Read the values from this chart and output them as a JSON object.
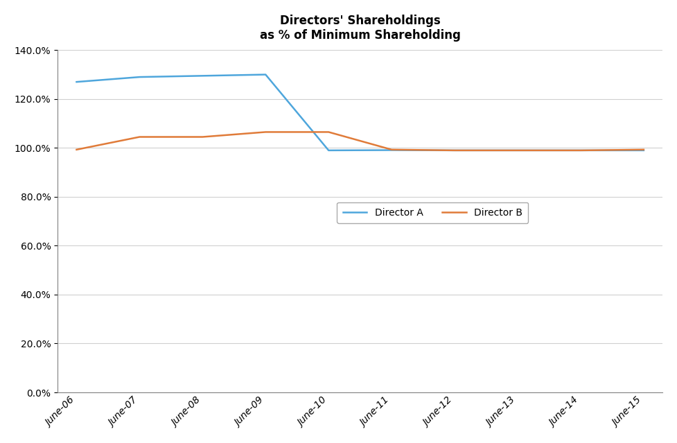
{
  "title_line1": "Directors' Shareholdings",
  "title_line2": "as % of Minimum Shareholding",
  "x_labels": [
    "June-06",
    "June-07",
    "June-08",
    "June-09",
    "June-10",
    "June-11",
    "June-12",
    "June-13",
    "June-14",
    "June-15"
  ],
  "director_a": [
    1.27,
    1.29,
    1.295,
    1.3,
    0.99,
    0.991,
    0.99,
    0.99,
    0.99,
    0.99
  ],
  "director_b": [
    0.993,
    1.045,
    1.045,
    1.065,
    1.065,
    0.993,
    0.99,
    0.99,
    0.99,
    0.993
  ],
  "color_a": "#4EA6DC",
  "color_b": "#E07B39",
  "ylim_min": 0.0,
  "ylim_max": 1.4,
  "yticks": [
    0.0,
    0.2,
    0.4,
    0.6,
    0.8,
    1.0,
    1.2,
    1.4
  ],
  "background_color": "#FFFFFF",
  "grid_color": "#D0D0D0",
  "legend_a": "Director A",
  "legend_b": "Director B",
  "spine_color": "#808080"
}
